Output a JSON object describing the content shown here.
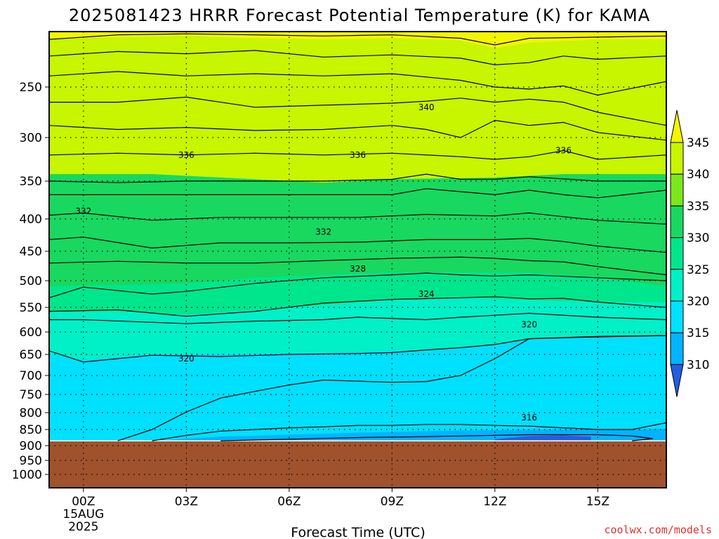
{
  "title": "2025081423 HRRR Forecast Potential Temperature (K) for KAMA",
  "xlabel": "Forecast Time (UTC)",
  "watermark": "coolwx.com/models",
  "x_ticks": [
    "00Z",
    "03Z",
    "06Z",
    "09Z",
    "12Z",
    "15Z"
  ],
  "x_date": [
    "15AUG",
    "2025"
  ],
  "y_ticks": [
    "250",
    "300",
    "350",
    "400",
    "450",
    "500",
    "550",
    "600",
    "650",
    "700",
    "750",
    "800",
    "850",
    "900",
    "950",
    "1000"
  ],
  "colorbar": {
    "labels": [
      "310",
      "315",
      "320",
      "325",
      "330",
      "335",
      "340",
      "345"
    ],
    "colors": [
      "#2060e0",
      "#00b4ff",
      "#00e0ff",
      "#00f0c8",
      "#00e68c",
      "#18d860",
      "#7ae81a",
      "#c8f500",
      "#f5f500"
    ]
  },
  "chart_data": {
    "type": "heatmap",
    "title": "2025081423 HRRR Forecast Potential Temperature (K) for KAMA",
    "xlabel": "Forecast Time (UTC)",
    "ylabel": "",
    "x_unit": "forecast hour",
    "x_range": [
      -1,
      17
    ],
    "x_ticks_hours": [
      0,
      3,
      6,
      9,
      12,
      15
    ],
    "y_unit": "hPa",
    "y_range": [
      200,
      1000
    ],
    "y_scale": "log-pressure",
    "y_ticks": [
      250,
      300,
      350,
      400,
      450,
      500,
      550,
      600,
      650,
      700,
      750,
      800,
      850,
      900,
      950,
      1000
    ],
    "surface_pressure_hPa": 885,
    "contour_interval_K": 2,
    "grid": true,
    "contour_labels": [
      {
        "value": "340",
        "hour": 10,
        "p": 270
      },
      {
        "value": "336",
        "hour": 3,
        "p": 320
      },
      {
        "value": "336",
        "hour": 8,
        "p": 320
      },
      {
        "value": "336",
        "hour": 14,
        "p": 315
      },
      {
        "value": "332",
        "hour": 0,
        "p": 390
      },
      {
        "value": "332",
        "hour": 7,
        "p": 420
      },
      {
        "value": "328",
        "hour": 8,
        "p": 480
      },
      {
        "value": "324",
        "hour": 10,
        "p": 525
      },
      {
        "value": "320",
        "hour": 13,
        "p": 585
      },
      {
        "value": "320",
        "hour": 3,
        "p": 660
      },
      {
        "value": "316",
        "hour": 13,
        "p": 815
      }
    ],
    "contours": [
      {
        "level": 344,
        "pts": [
          [
            -1,
            207
          ],
          [
            1,
            203
          ],
          [
            3,
            202
          ],
          [
            5,
            203
          ],
          [
            7,
            204
          ],
          [
            9,
            203
          ],
          [
            11,
            206
          ],
          [
            12,
            212
          ],
          [
            13,
            206
          ],
          [
            15,
            205
          ],
          [
            17,
            204
          ]
        ]
      },
      {
        "level": 342,
        "pts": [
          [
            -1,
            222
          ],
          [
            1,
            218
          ],
          [
            3,
            220
          ],
          [
            5,
            217
          ],
          [
            7,
            223
          ],
          [
            9,
            221
          ],
          [
            11,
            224
          ],
          [
            12,
            230
          ],
          [
            13,
            228
          ],
          [
            14,
            222
          ],
          [
            15,
            225
          ],
          [
            17,
            222
          ]
        ]
      },
      {
        "level": 340,
        "pts": [
          [
            -1,
            240
          ],
          [
            1,
            236
          ],
          [
            3,
            240
          ],
          [
            5,
            238
          ],
          [
            7,
            240
          ],
          [
            9,
            238
          ],
          [
            11,
            244
          ],
          [
            12,
            250
          ],
          [
            13,
            252
          ],
          [
            14,
            249
          ],
          [
            15,
            258
          ],
          [
            17,
            245
          ]
        ]
      },
      {
        "level": 338,
        "pts": [
          [
            -1,
            265
          ],
          [
            1,
            265
          ],
          [
            3,
            260
          ],
          [
            5,
            270
          ],
          [
            7,
            268
          ],
          [
            9,
            266
          ],
          [
            10,
            264
          ],
          [
            11,
            261
          ],
          [
            12,
            265
          ],
          [
            13,
            262
          ],
          [
            14,
            265
          ],
          [
            15,
            275
          ],
          [
            17,
            288
          ]
        ]
      },
      {
        "level": 336,
        "pts": [
          [
            -1,
            288
          ],
          [
            1,
            292
          ],
          [
            3,
            290
          ],
          [
            5,
            293
          ],
          [
            7,
            292
          ],
          [
            9,
            288
          ],
          [
            10,
            292
          ],
          [
            11,
            300
          ],
          [
            12,
            283
          ],
          [
            13,
            288
          ],
          [
            14,
            285
          ],
          [
            15,
            295
          ],
          [
            17,
            303
          ]
        ]
      },
      {
        "level": 334,
        "pts": [
          [
            -1,
            320
          ],
          [
            1,
            318
          ],
          [
            3,
            320
          ],
          [
            5,
            318
          ],
          [
            7,
            320
          ],
          [
            9,
            318
          ],
          [
            11,
            322
          ],
          [
            12,
            325
          ],
          [
            13,
            322
          ],
          [
            14,
            315
          ],
          [
            15,
            325
          ],
          [
            17,
            320
          ]
        ]
      },
      {
        "level": 332,
        "pts": [
          [
            -1,
            350
          ],
          [
            1,
            352
          ],
          [
            3,
            350
          ],
          [
            5,
            350
          ],
          [
            7,
            350
          ],
          [
            9,
            348
          ],
          [
            10,
            342
          ],
          [
            11,
            348
          ],
          [
            12,
            348
          ],
          [
            13,
            345
          ],
          [
            15,
            350
          ],
          [
            17,
            350
          ]
        ]
      },
      {
        "level": 330,
        "pts": [
          [
            -1,
            368
          ],
          [
            1,
            368
          ],
          [
            3,
            368
          ],
          [
            5,
            368
          ],
          [
            7,
            368
          ],
          [
            9,
            368
          ],
          [
            10,
            360
          ],
          [
            12,
            368
          ],
          [
            13,
            362
          ],
          [
            14,
            368
          ],
          [
            15,
            372
          ],
          [
            17,
            362
          ]
        ]
      },
      {
        "level": 328,
        "pts": [
          [
            -1,
            395
          ],
          [
            0,
            392
          ],
          [
            2,
            402
          ],
          [
            4,
            398
          ],
          [
            6,
            398
          ],
          [
            8,
            398
          ],
          [
            10,
            394
          ],
          [
            12,
            396
          ],
          [
            13,
            392
          ],
          [
            14,
            397
          ],
          [
            15,
            402
          ],
          [
            17,
            408
          ]
        ]
      },
      {
        "level": 326,
        "pts": [
          [
            -1,
            432
          ],
          [
            0,
            428
          ],
          [
            2,
            445
          ],
          [
            4,
            437
          ],
          [
            6,
            437
          ],
          [
            8,
            436
          ],
          [
            10,
            432
          ],
          [
            12,
            432
          ],
          [
            13,
            430
          ],
          [
            14,
            435
          ],
          [
            15,
            442
          ],
          [
            17,
            452
          ]
        ]
      },
      {
        "level": 324,
        "pts": [
          [
            -1,
            470
          ],
          [
            1,
            467
          ],
          [
            3,
            470
          ],
          [
            5,
            470
          ],
          [
            7,
            466
          ],
          [
            9,
            462
          ],
          [
            11,
            460
          ],
          [
            12,
            462
          ],
          [
            13,
            466
          ],
          [
            14,
            468
          ],
          [
            15,
            476
          ],
          [
            17,
            490
          ]
        ]
      },
      {
        "level": 322,
        "pts": [
          [
            -1,
            532
          ],
          [
            0,
            512
          ],
          [
            2,
            525
          ],
          [
            3,
            520
          ],
          [
            5,
            505
          ],
          [
            7,
            495
          ],
          [
            9,
            490
          ],
          [
            10,
            487
          ],
          [
            11,
            490
          ],
          [
            12,
            492
          ],
          [
            13,
            490
          ],
          [
            15,
            495
          ],
          [
            17,
            500
          ]
        ]
      },
      {
        "level": 320,
        "pts": [
          [
            -1,
            558
          ],
          [
            1,
            555
          ],
          [
            3,
            568
          ],
          [
            5,
            558
          ],
          [
            7,
            542
          ],
          [
            9,
            535
          ],
          [
            11,
            532
          ],
          [
            12,
            530
          ],
          [
            13,
            534
          ],
          [
            14,
            533
          ],
          [
            15,
            540
          ],
          [
            17,
            550
          ]
        ]
      },
      {
        "level": 318,
        "pts": [
          [
            -1,
            575
          ],
          [
            0,
            575
          ],
          [
            3,
            583
          ],
          [
            5,
            578
          ],
          [
            7,
            575
          ],
          [
            8,
            570
          ],
          [
            10,
            575
          ],
          [
            11,
            570
          ],
          [
            12,
            566
          ],
          [
            13,
            562
          ],
          [
            15,
            570
          ],
          [
            17,
            575
          ]
        ]
      },
      {
        "level": 316,
        "pts": [
          [
            -1,
            642
          ],
          [
            0,
            668
          ],
          [
            2,
            652
          ],
          [
            4,
            655
          ],
          [
            6,
            650
          ],
          [
            8,
            648
          ],
          [
            9,
            646
          ],
          [
            10,
            640
          ],
          [
            11,
            635
          ],
          [
            12,
            628
          ],
          [
            13,
            615
          ],
          [
            15,
            610
          ],
          [
            17,
            608
          ]
        ]
      },
      {
        "level": 314,
        "pts": [
          [
            1,
            885
          ],
          [
            2,
            850
          ],
          [
            3,
            798
          ],
          [
            4,
            760
          ],
          [
            5,
            742
          ],
          [
            6,
            725
          ],
          [
            7,
            712
          ],
          [
            8,
            715
          ],
          [
            9,
            718
          ],
          [
            10,
            716
          ],
          [
            11,
            700
          ],
          [
            12,
            660
          ],
          [
            13,
            615
          ],
          [
            15,
            611
          ],
          [
            17,
            608
          ]
        ]
      },
      {
        "level": 312,
        "pts": [
          [
            2,
            885
          ],
          [
            3,
            868
          ],
          [
            4,
            855
          ],
          [
            5,
            850
          ],
          [
            6,
            845
          ],
          [
            7,
            842
          ],
          [
            8,
            838
          ],
          [
            9,
            838
          ],
          [
            10,
            835
          ],
          [
            11,
            835
          ],
          [
            12,
            838
          ],
          [
            13,
            840
          ],
          [
            14,
            845
          ],
          [
            15,
            850
          ],
          [
            16,
            850
          ],
          [
            17,
            830
          ]
        ]
      },
      {
        "level": 310,
        "pts": [
          [
            4,
            885
          ],
          [
            6,
            880
          ],
          [
            8,
            875
          ],
          [
            10,
            872
          ],
          [
            12,
            868
          ],
          [
            13,
            866
          ],
          [
            14,
            866
          ],
          [
            15,
            866
          ],
          [
            16,
            870
          ],
          [
            16.6,
            878
          ],
          [
            16,
            885
          ]
        ]
      }
    ]
  }
}
